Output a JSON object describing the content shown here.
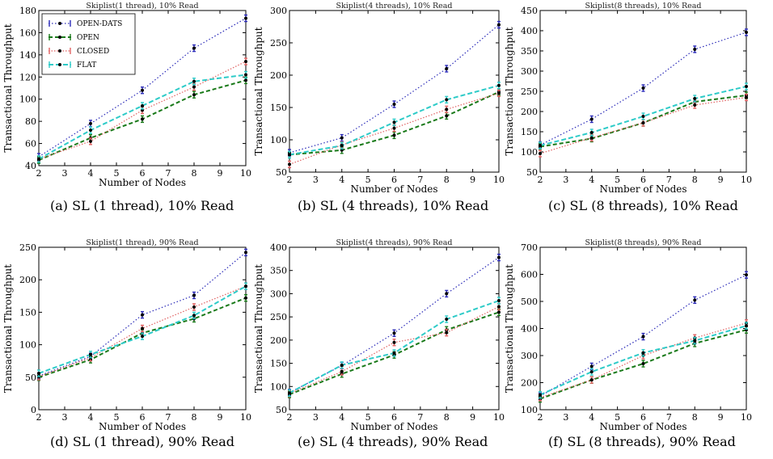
{
  "chart_data": [
    {
      "type": "line",
      "title": "Skiplist(1 thread), 10% Read",
      "caption": "(a) SL (1 thread), 10% Read",
      "xlabel": "Number of Nodes",
      "ylabel": "Transactional Throughput",
      "x": [
        2,
        4,
        6,
        8,
        10
      ],
      "xlim": [
        2,
        10
      ],
      "ylim": [
        40,
        180
      ],
      "yticks": [
        40,
        60,
        80,
        100,
        120,
        140,
        160,
        180
      ],
      "legend": "top-left",
      "series": [
        {
          "name": "OPEN-DATS",
          "values": [
            48,
            78,
            108,
            146,
            173
          ]
        },
        {
          "name": "OPEN",
          "values": [
            45,
            65,
            82,
            104,
            117
          ]
        },
        {
          "name": "CLOSED",
          "values": [
            46,
            62,
            90,
            111,
            134
          ]
        },
        {
          "name": "FLAT",
          "values": [
            46,
            72,
            94,
            116,
            122
          ]
        }
      ]
    },
    {
      "type": "line",
      "title": "Skiplist(4 threads), 10% Read",
      "caption": "(b) SL (4 threads), 10% Read",
      "xlabel": "Number of Nodes",
      "ylabel": "Transactional Throughput",
      "x": [
        2,
        4,
        6,
        8,
        10
      ],
      "xlim": [
        2,
        10
      ],
      "ylim": [
        50,
        300
      ],
      "yticks": [
        50,
        100,
        150,
        200,
        250,
        300
      ],
      "series": [
        {
          "name": "OPEN-DATS",
          "values": [
            80,
            103,
            155,
            210,
            278
          ]
        },
        {
          "name": "OPEN",
          "values": [
            77,
            84,
            107,
            137,
            174
          ]
        },
        {
          "name": "CLOSED",
          "values": [
            62,
            92,
            118,
            147,
            172
          ]
        },
        {
          "name": "FLAT",
          "values": [
            77,
            91,
            127,
            162,
            184
          ]
        }
      ]
    },
    {
      "type": "line",
      "title": "Skiplist(8 threads), 10% Read",
      "caption": "(c) SL (8 threads), 10% Read",
      "xlabel": "Number of Nodes",
      "ylabel": "Transactional Throughput",
      "x": [
        2,
        4,
        6,
        8,
        10
      ],
      "xlim": [
        2,
        10
      ],
      "ylim": [
        50,
        450
      ],
      "yticks": [
        50,
        100,
        150,
        200,
        250,
        300,
        350,
        400,
        450
      ],
      "series": [
        {
          "name": "OPEN-DATS",
          "values": [
            117,
            181,
            258,
            354,
            396
          ]
        },
        {
          "name": "OPEN",
          "values": [
            113,
            133,
            172,
            224,
            240
          ]
        },
        {
          "name": "CLOSED",
          "values": [
            96,
            135,
            172,
            216,
            235
          ]
        },
        {
          "name": "FLAT",
          "values": [
            116,
            148,
            188,
            232,
            262
          ]
        }
      ]
    },
    {
      "type": "line",
      "title": "Skiplist(1 thread), 90% Read",
      "caption": "(d) SL (1 thread), 90% Read",
      "xlabel": "Number of Nodes",
      "ylabel": "Transactional Throughput",
      "x": [
        2,
        4,
        6,
        8,
        10
      ],
      "xlim": [
        2,
        10
      ],
      "ylim": [
        0,
        250
      ],
      "yticks": [
        0,
        50,
        100,
        150,
        200,
        250
      ],
      "series": [
        {
          "name": "OPEN-DATS",
          "values": [
            52,
            82,
            146,
            176,
            242
          ]
        },
        {
          "name": "OPEN",
          "values": [
            50,
            77,
            118,
            140,
            172
          ]
        },
        {
          "name": "CLOSED",
          "values": [
            51,
            80,
            125,
            158,
            190
          ]
        },
        {
          "name": "FLAT",
          "values": [
            56,
            85,
            113,
            145,
            190
          ]
        }
      ]
    },
    {
      "type": "line",
      "title": "Skiplist(4 threads), 90% Read",
      "caption": "(e) SL (4 threads), 90% Read",
      "xlabel": "Number of Nodes",
      "ylabel": "Transactional Throughput",
      "x": [
        2,
        4,
        6,
        8,
        10
      ],
      "xlim": [
        2,
        10
      ],
      "ylim": [
        50,
        400
      ],
      "yticks": [
        50,
        100,
        150,
        200,
        250,
        300,
        350,
        400
      ],
      "series": [
        {
          "name": "OPEN-DATS",
          "values": [
            87,
            145,
            215,
            300,
            378
          ]
        },
        {
          "name": "OPEN",
          "values": [
            83,
            127,
            168,
            222,
            260
          ]
        },
        {
          "name": "CLOSED",
          "values": [
            85,
            132,
            195,
            216,
            272
          ]
        },
        {
          "name": "FLAT",
          "values": [
            86,
            146,
            172,
            245,
            285
          ]
        }
      ]
    },
    {
      "type": "line",
      "title": "Skiplist(8 threads), 90% Read",
      "caption": "(f) SL (8 threads), 90% Read",
      "xlabel": "Number of Nodes",
      "ylabel": "Transactional Throughput",
      "x": [
        2,
        4,
        6,
        8,
        10
      ],
      "xlim": [
        2,
        10
      ],
      "ylim": [
        100,
        700
      ],
      "yticks": [
        100,
        200,
        300,
        400,
        500,
        600,
        700
      ],
      "series": [
        {
          "name": "OPEN-DATS",
          "values": [
            150,
            260,
            370,
            505,
            598
          ]
        },
        {
          "name": "OPEN",
          "values": [
            140,
            210,
            270,
            345,
            395
          ]
        },
        {
          "name": "CLOSED",
          "values": [
            145,
            210,
            300,
            365,
            420
          ]
        },
        {
          "name": "FLAT",
          "values": [
            155,
            240,
            310,
            355,
            410
          ]
        }
      ]
    }
  ],
  "xticks": [
    2,
    3,
    4,
    5,
    6,
    7,
    8,
    9,
    10
  ],
  "series_styles": [
    {
      "color": "#2a2ab8",
      "dash": "1.5,2.5",
      "width": 1.2
    },
    {
      "color": "#1a7a1a",
      "dash": "5,3",
      "width": 2
    },
    {
      "color": "#e06060",
      "dash": "1.5,2",
      "width": 1.2
    },
    {
      "color": "#2ecbc8",
      "dash": "6,3",
      "width": 2
    }
  ],
  "legend_entries": [
    "OPEN-DATS",
    "OPEN",
    "CLOSED",
    "FLAT"
  ]
}
